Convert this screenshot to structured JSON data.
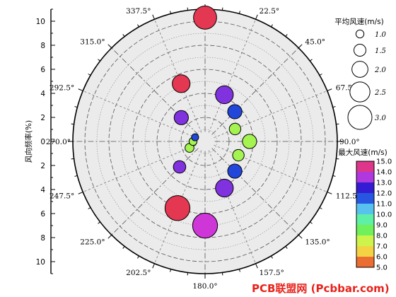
{
  "chart_data": {
    "type": "scatter",
    "subtype": "polar-bubble-wind-rose",
    "ylabel": "风向频率(%)",
    "rlim": [
      0,
      11
    ],
    "r_ticks": [
      0,
      2,
      4,
      6,
      8,
      10
    ],
    "angle_labels": [
      "0.0°",
      "22.5°",
      "45.0°",
      "67.5°",
      "90.0°",
      "112.5°",
      "135.0°",
      "157.5°",
      "180.0°",
      "202.5°",
      "225.0°",
      "247.5°",
      "270.0°",
      "292.5°",
      "315.0°",
      "337.5°"
    ],
    "grid": true,
    "size_legend": {
      "title": "平均风速(m/s)",
      "entries": [
        {
          "label": "1.0",
          "value": 1.0
        },
        {
          "label": "1.5",
          "value": 1.5
        },
        {
          "label": "2.0",
          "value": 2.0
        },
        {
          "label": "2.5",
          "value": 2.5
        },
        {
          "label": "3.0",
          "value": 3.0
        }
      ]
    },
    "color_legend": {
      "title": "最大风速(m/s)",
      "labels": [
        "15.0",
        "14.0",
        "13.0",
        "12.0",
        "11.0",
        "10.0",
        "9.0",
        "8.0",
        "7.0",
        "6.0",
        "5.0"
      ],
      "min": 5,
      "max": 15,
      "colors": [
        "#e8372b",
        "#f09a38",
        "#f5f24a",
        "#c1f54c",
        "#62ef5c",
        "#5ef0a9",
        "#5ac7ef",
        "#2b63e3",
        "#1212cc",
        "#9b3ae2",
        "#d535d7",
        "#e8372b"
      ]
    },
    "points": [
      {
        "angle": 0.0,
        "freq": 10.3,
        "speed": 2.6,
        "max": 14.8
      },
      {
        "angle": 22.5,
        "freq": 4.2,
        "speed": 2.0,
        "max": 13.0
      },
      {
        "angle": 45.0,
        "freq": 3.5,
        "speed": 1.6,
        "max": 11.7
      },
      {
        "angle": 67.5,
        "freq": 2.7,
        "speed": 1.3,
        "max": 8.0
      },
      {
        "angle": 90.0,
        "freq": 3.7,
        "speed": 1.6,
        "max": 8.0
      },
      {
        "angle": 112.5,
        "freq": 3.0,
        "speed": 1.3,
        "max": 8.0
      },
      {
        "angle": 135.0,
        "freq": 3.5,
        "speed": 1.6,
        "max": 11.7
      },
      {
        "angle": 157.5,
        "freq": 4.2,
        "speed": 2.0,
        "max": 13.0
      },
      {
        "angle": 180.0,
        "freq": 7.0,
        "speed": 2.8,
        "max": 14.0
      },
      {
        "angle": 202.5,
        "freq": 6.0,
        "speed": 2.8,
        "max": 14.8
      },
      {
        "angle": 225.0,
        "freq": 3.0,
        "speed": 1.4,
        "max": 13.0
      },
      {
        "angle": 247.5,
        "freq": 1.4,
        "speed": 1.0,
        "max": 8.0
      },
      {
        "angle": 270.0,
        "freq": 1.0,
        "speed": 0.9,
        "max": 8.0
      },
      {
        "angle": 292.5,
        "freq": 0.9,
        "speed": 0.8,
        "max": 11.7
      },
      {
        "angle": 315.0,
        "freq": 2.8,
        "speed": 1.6,
        "max": 13.0
      },
      {
        "angle": 337.5,
        "freq": 5.2,
        "speed": 2.0,
        "max": 14.8
      }
    ]
  },
  "watermark": "PCB联盟网 (Pcbbar.com)"
}
